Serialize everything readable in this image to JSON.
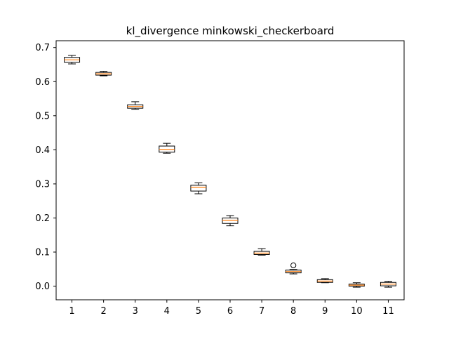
{
  "chart_data": {
    "type": "boxplot",
    "title": "kl_divergence minkowski_checkerboard",
    "xlabel": "",
    "ylabel": "",
    "categories": [
      "1",
      "2",
      "3",
      "4",
      "5",
      "6",
      "7",
      "8",
      "9",
      "10",
      "11"
    ],
    "ylim": [
      -0.04,
      0.72
    ],
    "yticks": [
      0.0,
      0.1,
      0.2,
      0.3,
      0.4,
      0.5,
      0.6,
      0.7
    ],
    "ytick_labels": [
      "0.0",
      "0.1",
      "0.2",
      "0.3",
      "0.4",
      "0.5",
      "0.6",
      "0.7"
    ],
    "grid": false,
    "boxes": [
      {
        "whislo": 0.652,
        "q1": 0.657,
        "med": 0.664,
        "q3": 0.671,
        "whishi": 0.677,
        "fliers": []
      },
      {
        "whislo": 0.617,
        "q1": 0.619,
        "med": 0.623,
        "q3": 0.627,
        "whishi": 0.63,
        "fliers": []
      },
      {
        "whislo": 0.519,
        "q1": 0.522,
        "med": 0.527,
        "q3": 0.532,
        "whishi": 0.541,
        "fliers": []
      },
      {
        "whislo": 0.39,
        "q1": 0.393,
        "med": 0.401,
        "q3": 0.411,
        "whishi": 0.419,
        "fliers": []
      },
      {
        "whislo": 0.271,
        "q1": 0.279,
        "med": 0.29,
        "q3": 0.296,
        "whishi": 0.303,
        "fliers": []
      },
      {
        "whislo": 0.177,
        "q1": 0.184,
        "med": 0.193,
        "q3": 0.2,
        "whishi": 0.207,
        "fliers": []
      },
      {
        "whislo": 0.091,
        "q1": 0.093,
        "med": 0.097,
        "q3": 0.102,
        "whishi": 0.11,
        "fliers": []
      },
      {
        "whislo": 0.036,
        "q1": 0.039,
        "med": 0.043,
        "q3": 0.047,
        "whishi": 0.049,
        "fliers": [
          0.061
        ]
      },
      {
        "whislo": 0.01,
        "q1": 0.011,
        "med": 0.015,
        "q3": 0.019,
        "whishi": 0.022,
        "fliers": []
      },
      {
        "whislo": -0.003,
        "q1": 0.0,
        "med": 0.003,
        "q3": 0.006,
        "whishi": 0.01,
        "fliers": []
      },
      {
        "whislo": -0.003,
        "q1": 0.001,
        "med": 0.006,
        "q3": 0.011,
        "whishi": 0.014,
        "fliers": []
      }
    ],
    "colors": {
      "box_edge": "#000000",
      "median": "#ff7f0e",
      "whisker": "#000000",
      "flier_edge": "#000000"
    }
  }
}
